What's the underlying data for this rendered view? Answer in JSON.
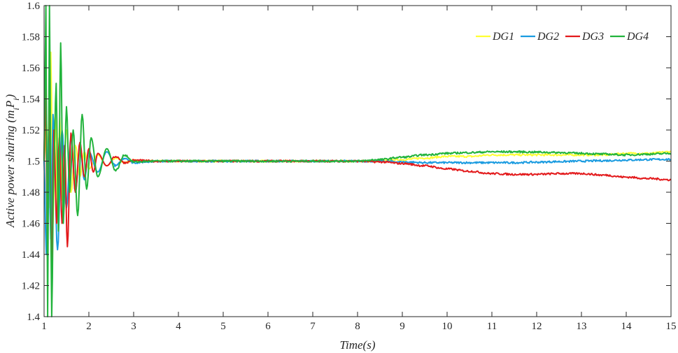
{
  "chart_data": {
    "type": "line",
    "xlabel": "Time(s)",
    "ylabel": "Active power sharing (m_i P_i)",
    "ylabel_parts": {
      "text": "Active power sharing (",
      "m": "m",
      "i1": "i",
      "P": "P",
      "i2": "i",
      "close": ")"
    },
    "xlim": [
      1,
      15
    ],
    "ylim": [
      1.4,
      1.6
    ],
    "xticks": [
      "1",
      "2",
      "3",
      "4",
      "5",
      "6",
      "7",
      "8",
      "9",
      "10",
      "11",
      "12",
      "13",
      "14",
      "15"
    ],
    "yticks": [
      "1.4",
      "1.42",
      "1.44",
      "1.46",
      "1.48",
      "1.5",
      "1.52",
      "1.54",
      "1.56",
      "1.58",
      "1.6"
    ],
    "legend_position": "top-right",
    "grid": false,
    "series": [
      {
        "name": "DG1",
        "color": "#FFFF33",
        "x": [
          1.0,
          1.05,
          1.1,
          1.15,
          1.2,
          1.25,
          1.3,
          1.35,
          1.4,
          1.5,
          1.6,
          1.7,
          1.8,
          1.9,
          2.0,
          2.2,
          2.4,
          2.6,
          2.8,
          3.0,
          3.5,
          4,
          5,
          6,
          7,
          8,
          8.5,
          9,
          9.5,
          10,
          10.5,
          11,
          11.5,
          12,
          12.5,
          13,
          13.5,
          14,
          14.5,
          15
        ],
        "y": [
          1.5,
          1.53,
          1.47,
          1.57,
          1.46,
          1.53,
          1.47,
          1.528,
          1.475,
          1.52,
          1.48,
          1.51,
          1.49,
          1.506,
          1.495,
          1.504,
          1.497,
          1.502,
          1.499,
          1.5005,
          1.5,
          1.5,
          1.5,
          1.5,
          1.5,
          1.5,
          1.5,
          1.501,
          1.502,
          1.503,
          1.503,
          1.504,
          1.504,
          1.504,
          1.504,
          1.504,
          1.504,
          1.505,
          1.505,
          1.506
        ]
      },
      {
        "name": "DG2",
        "color": "#1A9BE0",
        "x": [
          1.0,
          1.05,
          1.1,
          1.15,
          1.2,
          1.3,
          1.4,
          1.5,
          1.6,
          1.7,
          1.8,
          1.9,
          2.0,
          2.2,
          2.4,
          2.6,
          2.8,
          3.0,
          3.5,
          4,
          5,
          6,
          7,
          8,
          8.5,
          9,
          9.5,
          10,
          10.5,
          11,
          11.5,
          12,
          12.5,
          13,
          13.5,
          14,
          14.5,
          15
        ],
        "y": [
          1.5,
          1.44,
          1.52,
          1.45,
          1.53,
          1.443,
          1.52,
          1.47,
          1.515,
          1.48,
          1.51,
          1.488,
          1.506,
          1.493,
          1.506,
          1.497,
          1.502,
          1.499,
          1.5,
          1.5,
          1.5,
          1.5,
          1.5,
          1.5,
          1.5,
          1.4995,
          1.499,
          1.499,
          1.499,
          1.499,
          1.499,
          1.4993,
          1.4997,
          1.5,
          1.5003,
          1.5007,
          1.501,
          1.5012
        ]
      },
      {
        "name": "DG3",
        "color": "#E31A1C",
        "x": [
          1.0,
          1.03,
          1.07,
          1.12,
          1.17,
          1.22,
          1.28,
          1.34,
          1.4,
          1.46,
          1.52,
          1.6,
          1.7,
          1.8,
          1.9,
          2.0,
          2.1,
          2.2,
          2.4,
          2.6,
          2.8,
          3.0,
          3.5,
          4,
          5,
          6,
          7,
          8,
          8.5,
          9,
          9.5,
          10,
          10.5,
          11,
          11.5,
          12,
          12.5,
          13,
          13.5,
          14,
          14.5,
          15
        ],
        "y": [
          1.5,
          1.56,
          1.45,
          1.537,
          1.43,
          1.52,
          1.46,
          1.515,
          1.46,
          1.51,
          1.445,
          1.518,
          1.48,
          1.512,
          1.49,
          1.508,
          1.493,
          1.505,
          1.497,
          1.503,
          1.499,
          1.5005,
          1.5,
          1.5,
          1.5,
          1.5,
          1.5,
          1.5,
          1.4995,
          1.4985,
          1.497,
          1.495,
          1.4935,
          1.492,
          1.4915,
          1.4915,
          1.492,
          1.492,
          1.491,
          1.4897,
          1.4888,
          1.488
        ]
      },
      {
        "name": "DG4",
        "color": "#22B33C",
        "x": [
          1.0,
          1.04,
          1.08,
          1.12,
          1.17,
          1.22,
          1.27,
          1.32,
          1.37,
          1.43,
          1.5,
          1.57,
          1.65,
          1.75,
          1.85,
          1.95,
          2.05,
          2.2,
          2.4,
          2.6,
          2.8,
          3.0,
          3.5,
          4,
          5,
          6,
          7,
          8,
          8.5,
          9,
          9.5,
          10,
          10.5,
          11,
          11.5,
          12,
          12.5,
          13,
          13.5,
          14,
          14.5,
          15
        ],
        "y": [
          1.5,
          1.6,
          1.4,
          1.6,
          1.4,
          1.5,
          1.55,
          1.455,
          1.576,
          1.46,
          1.535,
          1.48,
          1.52,
          1.465,
          1.53,
          1.482,
          1.515,
          1.49,
          1.508,
          1.494,
          1.504,
          1.4995,
          1.5,
          1.5,
          1.5,
          1.5,
          1.5,
          1.5,
          1.501,
          1.5025,
          1.504,
          1.505,
          1.5055,
          1.506,
          1.506,
          1.5058,
          1.5055,
          1.505,
          1.5045,
          1.504,
          1.5045,
          1.505
        ]
      }
    ]
  }
}
